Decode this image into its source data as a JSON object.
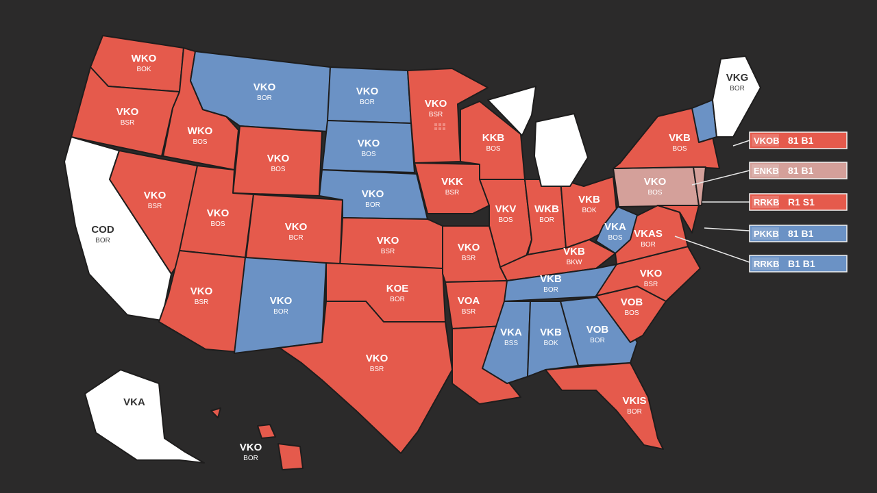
{
  "colors": {
    "background": "#2b2a2a",
    "red": "#e55a4c",
    "blue": "#6b92c5",
    "white": "#ffffff",
    "pink": "#d4a09a",
    "border": "#1e1d1d"
  },
  "states": [
    {
      "id": "wa",
      "color": "red",
      "l1": "WKO",
      "l2": "BOK"
    },
    {
      "id": "or",
      "color": "red",
      "l1": "VKO",
      "l2": "BSR"
    },
    {
      "id": "id",
      "color": "red",
      "l1": "WKO",
      "l2": "BOS"
    },
    {
      "id": "mt",
      "color": "blue",
      "l1": "VKO",
      "l2": "BOR"
    },
    {
      "id": "nd",
      "color": "blue",
      "l1": "VKO",
      "l2": "BOR"
    },
    {
      "id": "mn",
      "color": "red",
      "l1": "VKO",
      "l2": "BSR"
    },
    {
      "id": "wy",
      "color": "red",
      "l1": "VKO",
      "l2": "BOS"
    },
    {
      "id": "sd",
      "color": "blue",
      "l1": "VKO",
      "l2": "BOS"
    },
    {
      "id": "ca",
      "color": "white",
      "l1": "COD",
      "l2": "BOR"
    },
    {
      "id": "nv",
      "color": "red",
      "l1": "VKO",
      "l2": "BSR"
    },
    {
      "id": "ut",
      "color": "red",
      "l1": "VKO",
      "l2": "BOS"
    },
    {
      "id": "co",
      "color": "red",
      "l1": "VKO",
      "l2": "BCR"
    },
    {
      "id": "ne",
      "color": "blue",
      "l1": "VKO",
      "l2": "BOR"
    },
    {
      "id": "ia",
      "color": "red",
      "l1": "VKK",
      "l2": "BSR"
    },
    {
      "id": "wi",
      "color": "red",
      "l1": "KKB",
      "l2": "BOS"
    },
    {
      "id": "il",
      "color": "red",
      "l1": "VKV",
      "l2": "BOS"
    },
    {
      "id": "in",
      "color": "red",
      "l1": "WKB",
      "l2": "BOR"
    },
    {
      "id": "oh",
      "color": "red",
      "l1": "VKB",
      "l2": "BOK"
    },
    {
      "id": "mi",
      "color": "white",
      "l1": "",
      "l2": ""
    },
    {
      "id": "pa",
      "color": "pink",
      "l1": "VKO",
      "l2": "BOS"
    },
    {
      "id": "ny",
      "color": "red",
      "l1": "VKB",
      "l2": "BOS"
    },
    {
      "id": "vt",
      "color": "blue",
      "l1": "",
      "l2": ""
    },
    {
      "id": "me",
      "color": "white",
      "l1": "VKG",
      "l2": "BOR"
    },
    {
      "id": "az",
      "color": "red",
      "l1": "VKO",
      "l2": "BSR"
    },
    {
      "id": "nm",
      "color": "blue",
      "l1": "VKO",
      "l2": "BOR"
    },
    {
      "id": "ks",
      "color": "red",
      "l1": "VKO",
      "l2": "BSR"
    },
    {
      "id": "ok",
      "color": "red",
      "l1": "KOE",
      "l2": "BOR"
    },
    {
      "id": "tx",
      "color": "red",
      "l1": "VKO",
      "l2": "BSR"
    },
    {
      "id": "mo",
      "color": "red",
      "l1": "VKO",
      "l2": "BSR"
    },
    {
      "id": "ar",
      "color": "red",
      "l1": "VOA",
      "l2": "BSR"
    },
    {
      "id": "la",
      "color": "red",
      "l1": "",
      "l2": ""
    },
    {
      "id": "ky",
      "color": "red",
      "l1": "VKB",
      "l2": "BKW"
    },
    {
      "id": "tn",
      "color": "blue",
      "l1": "VKB",
      "l2": "BOR"
    },
    {
      "id": "ms",
      "color": "blue",
      "l1": "VKA",
      "l2": "BSS"
    },
    {
      "id": "al",
      "color": "blue",
      "l1": "VKB",
      "l2": "BOK"
    },
    {
      "id": "ga",
      "color": "blue",
      "l1": "VOB",
      "l2": "BOR"
    },
    {
      "id": "fl",
      "color": "red",
      "l1": "VKIS",
      "l2": "BOR"
    },
    {
      "id": "sc",
      "color": "red",
      "l1": "VOB",
      "l2": "BOS"
    },
    {
      "id": "nc",
      "color": "red",
      "l1": "VKO",
      "l2": "BSR"
    },
    {
      "id": "va",
      "color": "red",
      "l1": "VKAS",
      "l2": "BOR"
    },
    {
      "id": "wv",
      "color": "blue",
      "l1": "VKA",
      "l2": "BOS"
    },
    {
      "id": "nj",
      "color": "pink",
      "l1": "",
      "l2": ""
    },
    {
      "id": "md",
      "color": "red",
      "l1": "",
      "l2": ""
    },
    {
      "id": "ak",
      "color": "white",
      "l1": "VKA",
      "l2": ""
    },
    {
      "id": "hi",
      "color": "red",
      "l1": "VKO",
      "l2": "BOR"
    }
  ],
  "legend": [
    {
      "code": "VKOB",
      "value": "81 B1",
      "color": "red"
    },
    {
      "code": "ENKB",
      "value": "81 B1",
      "color": "pink"
    },
    {
      "code": "RRKB",
      "value": "R1 S1",
      "color": "red"
    },
    {
      "code": "PKKB",
      "value": "81 B1",
      "color": "blue"
    },
    {
      "code": "RRKB",
      "value": "B1 B1",
      "color": "blue"
    }
  ]
}
